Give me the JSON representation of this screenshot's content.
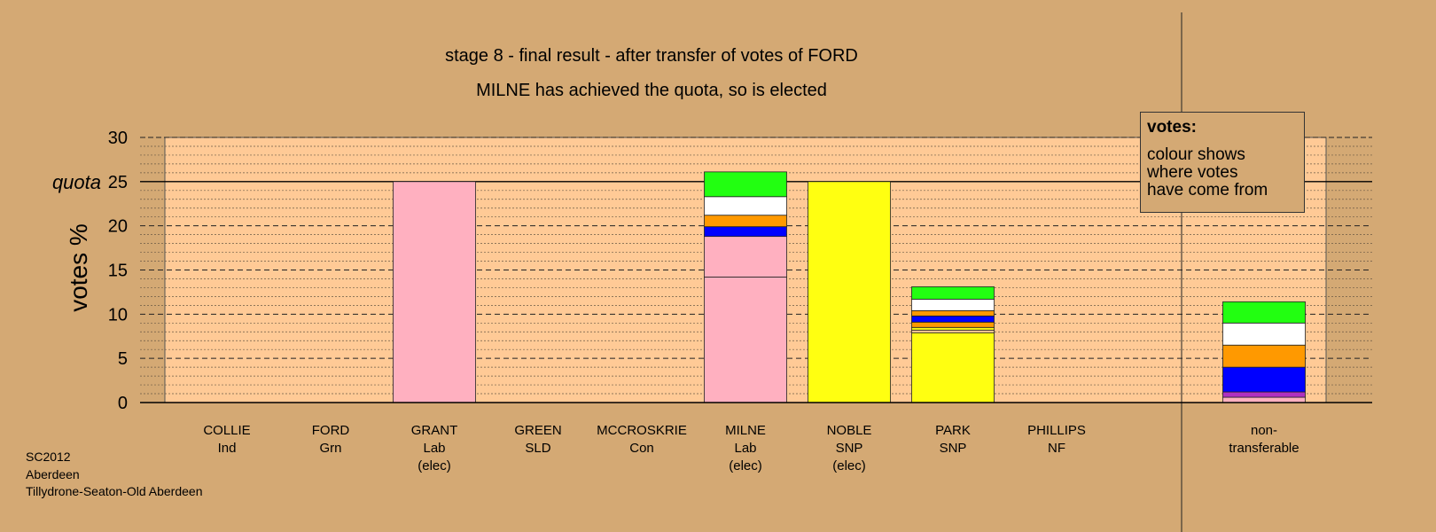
{
  "chart_data": {
    "type": "bar",
    "stacked": true,
    "title": "stage 8 - final result - after transfer of votes of FORD",
    "subtitle": "MILNE has achieved the quota, so is elected",
    "ylabel": "votes %",
    "quota_label": "quota",
    "quota": 25,
    "ylim": [
      0,
      30
    ],
    "yticks": [
      0,
      5,
      10,
      15,
      20,
      25,
      30
    ],
    "grid": true,
    "categories": [
      {
        "name": "COLLIE",
        "party": "Ind",
        "note": ""
      },
      {
        "name": "FORD",
        "party": "Grn",
        "note": ""
      },
      {
        "name": "GRANT",
        "party": "Lab",
        "note": "(elec)"
      },
      {
        "name": "GREEN",
        "party": "SLD",
        "note": ""
      },
      {
        "name": "MCCROSKRIE",
        "party": "Con",
        "note": ""
      },
      {
        "name": "MILNE",
        "party": "Lab",
        "note": "(elec)"
      },
      {
        "name": "NOBLE",
        "party": "SNP",
        "note": "(elec)"
      },
      {
        "name": "PARK",
        "party": "SNP",
        "note": ""
      },
      {
        "name": "PHILLIPS",
        "party": "NF",
        "note": ""
      },
      {
        "name": "non-",
        "party": "transferable",
        "note": ""
      }
    ],
    "stacks": [
      [],
      [],
      [
        {
          "value": 25.0,
          "color": "#ffb0c0"
        }
      ],
      [],
      [],
      [
        {
          "value": 14.2,
          "color": "#ffb0c0"
        },
        {
          "value": 4.6,
          "color": "#ffb0c0"
        },
        {
          "value": 1.1,
          "color": "#0000ff"
        },
        {
          "value": 1.3,
          "color": "#ff9900"
        },
        {
          "value": 2.1,
          "color": "#ffffff"
        },
        {
          "value": 2.8,
          "color": "#22ff11"
        }
      ],
      [
        {
          "value": 25.0,
          "color": "#ffff11"
        }
      ],
      [
        {
          "value": 7.9,
          "color": "#ffff11"
        },
        {
          "value": 0.3,
          "color": "#ffcc99"
        },
        {
          "value": 0.3,
          "color": "#ffff11"
        },
        {
          "value": 0.6,
          "color": "#ff9900"
        },
        {
          "value": 0.7,
          "color": "#0000ff"
        },
        {
          "value": 0.6,
          "color": "#ff9900"
        },
        {
          "value": 1.3,
          "color": "#ffffff"
        },
        {
          "value": 1.4,
          "color": "#22ff11"
        }
      ],
      [],
      [
        {
          "value": 0.6,
          "color": "#ffb0c0"
        },
        {
          "value": 0.6,
          "color": "#b030c0"
        },
        {
          "value": 2.8,
          "color": "#0000ff"
        },
        {
          "value": 2.5,
          "color": "#ff9900"
        },
        {
          "value": 2.5,
          "color": "#ffffff"
        },
        {
          "value": 2.4,
          "color": "#22ff11"
        }
      ]
    ],
    "colors": {
      "background": "#d4a974",
      "plot_area": "#ffca96"
    }
  },
  "legend": {
    "title": "votes:",
    "lines": [
      "colour shows",
      "where votes",
      "have come from"
    ]
  },
  "footer": [
    "SC2012",
    "Aberdeen",
    "Tillydrone-Seaton-Old Aberdeen"
  ]
}
